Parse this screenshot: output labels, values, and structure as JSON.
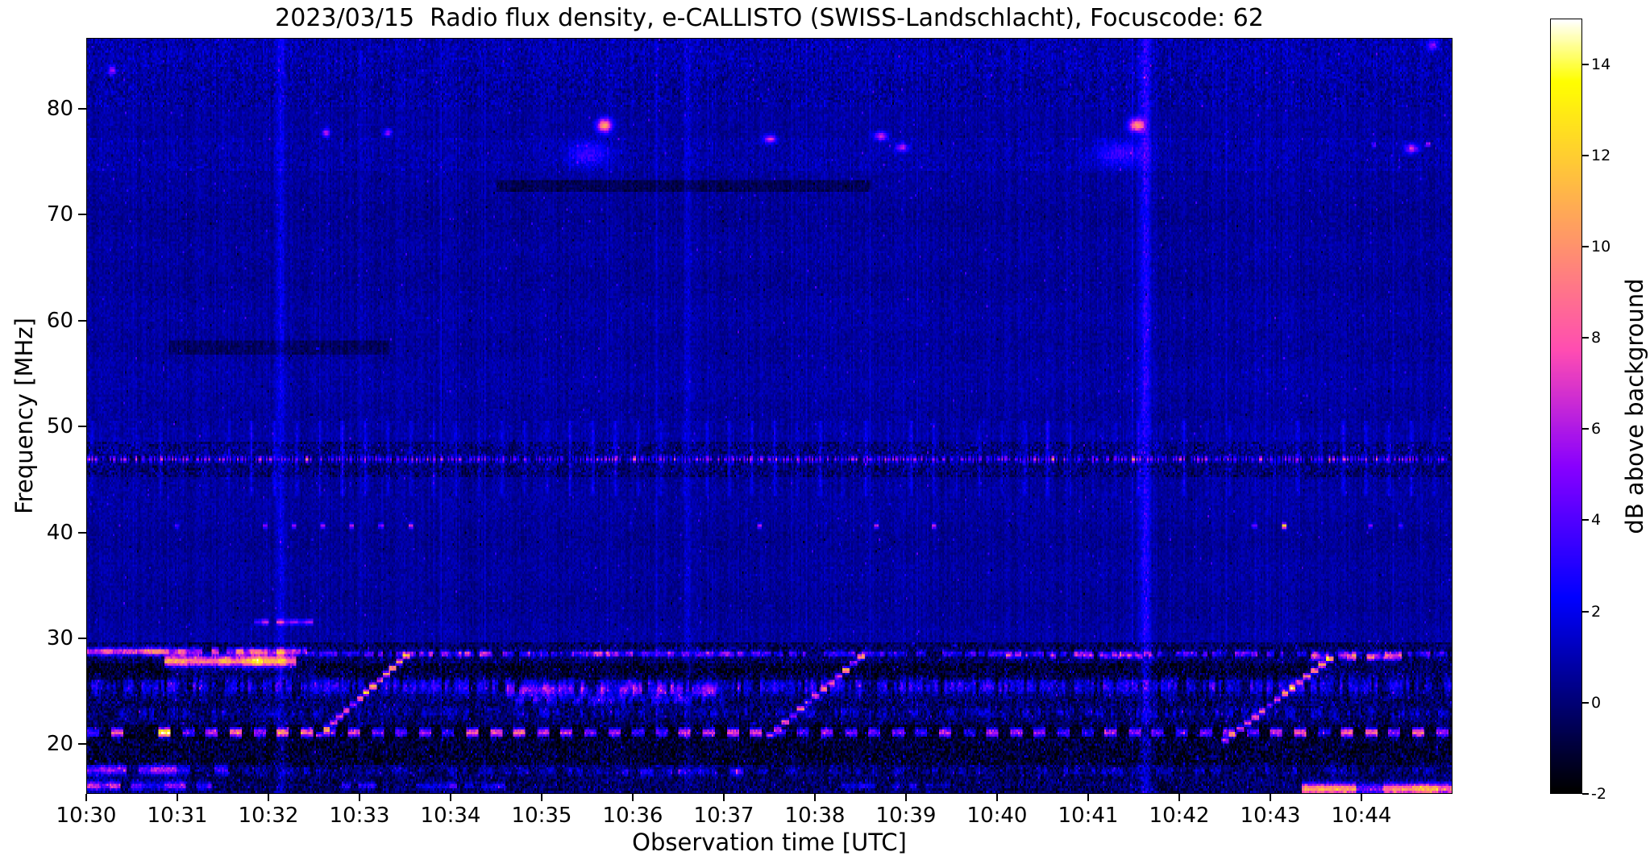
{
  "chart_data": {
    "type": "heatmap",
    "title": "2023/03/15  Radio flux density, e-CALLISTO (SWISS-Landschlacht), Focuscode: 62",
    "xlabel": "Observation time [UTC]",
    "ylabel": "Frequency [MHz]",
    "colorbar_label": "dB above background",
    "x_tick_labels": [
      "10:30",
      "10:31",
      "10:32",
      "10:33",
      "10:34",
      "10:35",
      "10:36",
      "10:37",
      "10:38",
      "10:39",
      "10:40",
      "10:41",
      "10:42",
      "10:43",
      "10:44"
    ],
    "x_extent_minutes": 15,
    "y_range_mhz": [
      15.3,
      86.7
    ],
    "y_ticks_mhz": [
      20,
      30,
      40,
      50,
      60,
      70,
      80
    ],
    "color_range_db": [
      -2,
      15
    ],
    "colorbar_ticks_db": [
      -2,
      0,
      2,
      4,
      6,
      8,
      10,
      12,
      14
    ],
    "colormap": "gnuplot2",
    "grid": false,
    "legend": "colorbar-right",
    "background_level_db": 0.6,
    "noise_seed": 20230315,
    "features": [
      {
        "kind": "band_noise",
        "f0": 18.4,
        "f1": 20.6,
        "t0": 0,
        "t1": 15,
        "amp": 0.8,
        "bias": -0.7,
        "seed": 19
      },
      {
        "kind": "band_noise",
        "f0": 20.7,
        "f1": 21.6,
        "t0": 0,
        "t1": 15,
        "amp": 0.6,
        "bias": -0.9,
        "seed": 49
      },
      {
        "kind": "band_noise",
        "f0": 26.4,
        "f1": 27.5,
        "t0": 2.5,
        "t1": 13.4,
        "amp": 0.7,
        "bias": -0.8,
        "seed": 20
      },
      {
        "kind": "band_noise",
        "f0": 26.3,
        "f1": 27.4,
        "t0": 0,
        "t1": 0.9,
        "amp": 0.4,
        "bias": -1.1,
        "seed": 48
      },
      {
        "kind": "band_noise",
        "f0": 45.6,
        "f1": 48.4,
        "t0": 0,
        "t1": 15,
        "amp": 1.1,
        "bias": -0.6,
        "seed": 21
      },
      {
        "kind": "band_noise",
        "f0": 74.5,
        "f1": 77.3,
        "t0": 0,
        "t1": 15,
        "amp": 0.45,
        "bias": 0.3,
        "seed": 42
      },
      {
        "kind": "band_noise",
        "f0": 80.5,
        "f1": 86.7,
        "t0": 0,
        "t1": 15,
        "amp": 0.8,
        "bias": 0.1,
        "seed": 43
      },
      {
        "kind": "band_noise",
        "f0": 72.6,
        "f1": 73.3,
        "t0": 4.5,
        "t1": 8.6,
        "amp": 0.25,
        "bias": -1.2,
        "seed": 44
      },
      {
        "kind": "band_noise",
        "f0": 57.2,
        "f1": 58,
        "t0": 0.9,
        "t1": 3.3,
        "amp": 0.25,
        "bias": -0.9,
        "seed": 45
      },
      {
        "kind": "hline",
        "f": 28.8,
        "hw": 0.35,
        "t0": 0,
        "t1": 2.4,
        "db": 8,
        "dash": 0.09,
        "duty": 0.95,
        "seed": 1
      },
      {
        "kind": "hline",
        "f": 27.9,
        "hw": 0.55,
        "t0": 0.85,
        "t1": 2.35,
        "db": 11,
        "dash": 0.12,
        "duty": 0.95,
        "seed": 2
      },
      {
        "kind": "hline",
        "f": 28.6,
        "hw": 0.28,
        "t0": 2.4,
        "t1": 15,
        "db": 4,
        "dash": 0.05,
        "duty": 0.65,
        "seed": 3
      },
      {
        "kind": "hline",
        "f": 28.6,
        "hw": 0.3,
        "t0": 3.3,
        "t1": 7.3,
        "db": 3,
        "dash": 0.07,
        "duty": 0.6,
        "seed": 4
      },
      {
        "kind": "hline",
        "f": 28.4,
        "hw": 0.3,
        "t0": 10.1,
        "t1": 11.7,
        "db": 4,
        "dash": 0.06,
        "duty": 0.65,
        "seed": 5
      },
      {
        "kind": "hline",
        "f": 28.3,
        "hw": 0.38,
        "t0": 13.45,
        "t1": 14.55,
        "db": 7.5,
        "dash": 0.1,
        "duty": 0.8,
        "seed": 6
      },
      {
        "kind": "hline",
        "f": 25.5,
        "hw": 0.85,
        "t0": 0,
        "t1": 15,
        "db": 2.8,
        "dash": 0.035,
        "duty": 0.7,
        "seed": 7
      },
      {
        "kind": "hline",
        "f": 25.1,
        "hw": 0.6,
        "t0": 4.55,
        "t1": 6.9,
        "db": 3.2,
        "dash": 0.05,
        "duty": 0.65,
        "seed": 8
      },
      {
        "kind": "hline",
        "f": 24.2,
        "hw": 0.5,
        "t0": 4.55,
        "t1": 7,
        "db": 2.6,
        "dash": 0.05,
        "duty": 0.6,
        "seed": 9
      },
      {
        "kind": "hline",
        "f": 23,
        "hw": 0.5,
        "t0": 0,
        "t1": 15,
        "db": 1.6,
        "dash": 0.04,
        "duty": 0.55,
        "seed": 10
      },
      {
        "kind": "dots",
        "f": 21.15,
        "hw": 0.45,
        "t0": 0,
        "t1": 15,
        "db": 7.5,
        "period": 0.26,
        "duty": 0.5,
        "p": 0.93,
        "seed": 11
      },
      {
        "kind": "hline",
        "f": 17.6,
        "hw": 0.5,
        "t0": 0,
        "t1": 1.6,
        "db": 6,
        "dash": 0.14,
        "duty": 0.85,
        "seed": 12
      },
      {
        "kind": "hline",
        "f": 17.5,
        "hw": 0.4,
        "t0": 1.6,
        "t1": 15,
        "db": 1.5,
        "dash": 0.06,
        "duty": 0.45,
        "seed": 13
      },
      {
        "kind": "hline",
        "f": 17.4,
        "hw": 0.4,
        "t0": 5.8,
        "t1": 7.3,
        "db": 2.6,
        "dash": 0.07,
        "duty": 0.55,
        "seed": 14
      },
      {
        "kind": "hline",
        "f": 16.1,
        "hw": 0.45,
        "t0": 0,
        "t1": 1.35,
        "db": 5.5,
        "dash": 0.12,
        "duty": 0.75,
        "seed": 15
      },
      {
        "kind": "hline",
        "f": 16.1,
        "hw": 0.35,
        "t0": 2.8,
        "t1": 4.6,
        "db": 3,
        "dash": 0.09,
        "duty": 0.5,
        "seed": 16
      },
      {
        "kind": "hline",
        "f": 16.1,
        "hw": 0.3,
        "t0": 8.3,
        "t1": 9.9,
        "db": 2.6,
        "dash": 0.09,
        "duty": 0.45,
        "seed": 17
      },
      {
        "kind": "hline",
        "f": 15.8,
        "hw": 0.55,
        "t0": 13.35,
        "t1": 15,
        "db": 8.5,
        "dash": 0.3,
        "duty": 1,
        "seed": 18
      },
      {
        "kind": "hline",
        "f": 31.6,
        "hw": 0.28,
        "t0": 1.75,
        "t1": 2.5,
        "db": 5.5,
        "dash": 0.08,
        "duty": 0.75,
        "seed": 24
      },
      {
        "kind": "dots",
        "f": 47,
        "hw": 0.3,
        "t0": 0,
        "t1": 15,
        "db": 4.2,
        "period": 0.04,
        "duty": 0.5,
        "p": 0.88,
        "seed": 22
      },
      {
        "kind": "dots",
        "f": 40.7,
        "hw": 0.25,
        "t0": 0,
        "t1": 15,
        "db": 4.5,
        "period": 0.32,
        "duty": 0.16,
        "p": 0.3,
        "seed": 23
      },
      {
        "kind": "dots",
        "f": 76.8,
        "hw": 0.2,
        "t0": 12.9,
        "t1": 14.9,
        "db": 4,
        "period": 0.3,
        "duty": 0.18,
        "p": 0.4,
        "seed": 47
      },
      {
        "kind": "drift",
        "t0": 2.55,
        "f0": 20.9,
        "t1": 3.5,
        "f1": 28.4,
        "db": 9.5,
        "steps": 14,
        "dash": 0.06,
        "hw": 0.3,
        "seed": 25
      },
      {
        "kind": "drift",
        "t0": 7.5,
        "f0": 20.9,
        "t1": 8.5,
        "f1": 28.3,
        "db": 8.5,
        "steps": 13,
        "dash": 0.06,
        "hw": 0.3,
        "seed": 26
      },
      {
        "kind": "drift",
        "t0": 12.5,
        "f0": 20.4,
        "t1": 13.65,
        "f1": 28.1,
        "db": 8.5,
        "steps": 15,
        "dash": 0.06,
        "hw": 0.3,
        "seed": 27
      },
      {
        "kind": "blob",
        "t": 5.68,
        "f": 78.6,
        "st": 0.055,
        "sf": 0.45,
        "db": 10,
        "seed": 28
      },
      {
        "kind": "blob",
        "t": 11.53,
        "f": 78.6,
        "st": 0.06,
        "sf": 0.45,
        "db": 9,
        "seed": 29
      },
      {
        "kind": "blob",
        "t": 5.5,
        "f": 75.9,
        "st": 0.16,
        "sf": 0.8,
        "db": 2.6,
        "seed": 30
      },
      {
        "kind": "blob",
        "t": 11.35,
        "f": 75.9,
        "st": 0.2,
        "sf": 0.8,
        "db": 2.6,
        "seed": 31
      },
      {
        "kind": "blob",
        "t": 7.5,
        "f": 77.3,
        "st": 0.05,
        "sf": 0.28,
        "db": 6,
        "seed": 32
      },
      {
        "kind": "blob",
        "t": 8.72,
        "f": 77.6,
        "st": 0.05,
        "sf": 0.28,
        "db": 6,
        "seed": 33
      },
      {
        "kind": "blob",
        "t": 8.95,
        "f": 76.5,
        "st": 0.05,
        "sf": 0.28,
        "db": 5,
        "seed": 34
      },
      {
        "kind": "blob",
        "t": 2.62,
        "f": 77.9,
        "st": 0.03,
        "sf": 0.25,
        "db": 6,
        "seed": 35
      },
      {
        "kind": "blob",
        "t": 3.3,
        "f": 77.9,
        "st": 0.03,
        "sf": 0.25,
        "db": 5,
        "seed": 50
      },
      {
        "kind": "blob",
        "t": 14.55,
        "f": 76.4,
        "st": 0.05,
        "sf": 0.3,
        "db": 6,
        "seed": 36
      },
      {
        "kind": "blob",
        "t": 0.27,
        "f": 83.8,
        "st": 0.03,
        "sf": 0.3,
        "db": 5,
        "seed": 37
      },
      {
        "kind": "blob",
        "t": 14.78,
        "f": 86.2,
        "st": 0.04,
        "sf": 0.35,
        "db": 5,
        "seed": 38
      },
      {
        "kind": "vline",
        "t": 2.12,
        "tw": 0.05,
        "f0": 15.3,
        "f1": 86.7,
        "db": 1.5,
        "seed": 39
      },
      {
        "kind": "vline",
        "t": 11.62,
        "tw": 0.06,
        "f0": 15.3,
        "f1": 86.7,
        "db": 2.2,
        "seed": 40
      },
      {
        "kind": "vline",
        "t": 6.6,
        "tw": 0.04,
        "f0": 15.3,
        "f1": 86.7,
        "db": 0.8,
        "seed": 41
      },
      {
        "kind": "pvlines",
        "t0": 0.05,
        "t1": 15,
        "period": 0.25,
        "f0": 43.8,
        "f1": 50.4,
        "db": 1.1,
        "tw": 0.02,
        "seed": 46
      }
    ]
  }
}
